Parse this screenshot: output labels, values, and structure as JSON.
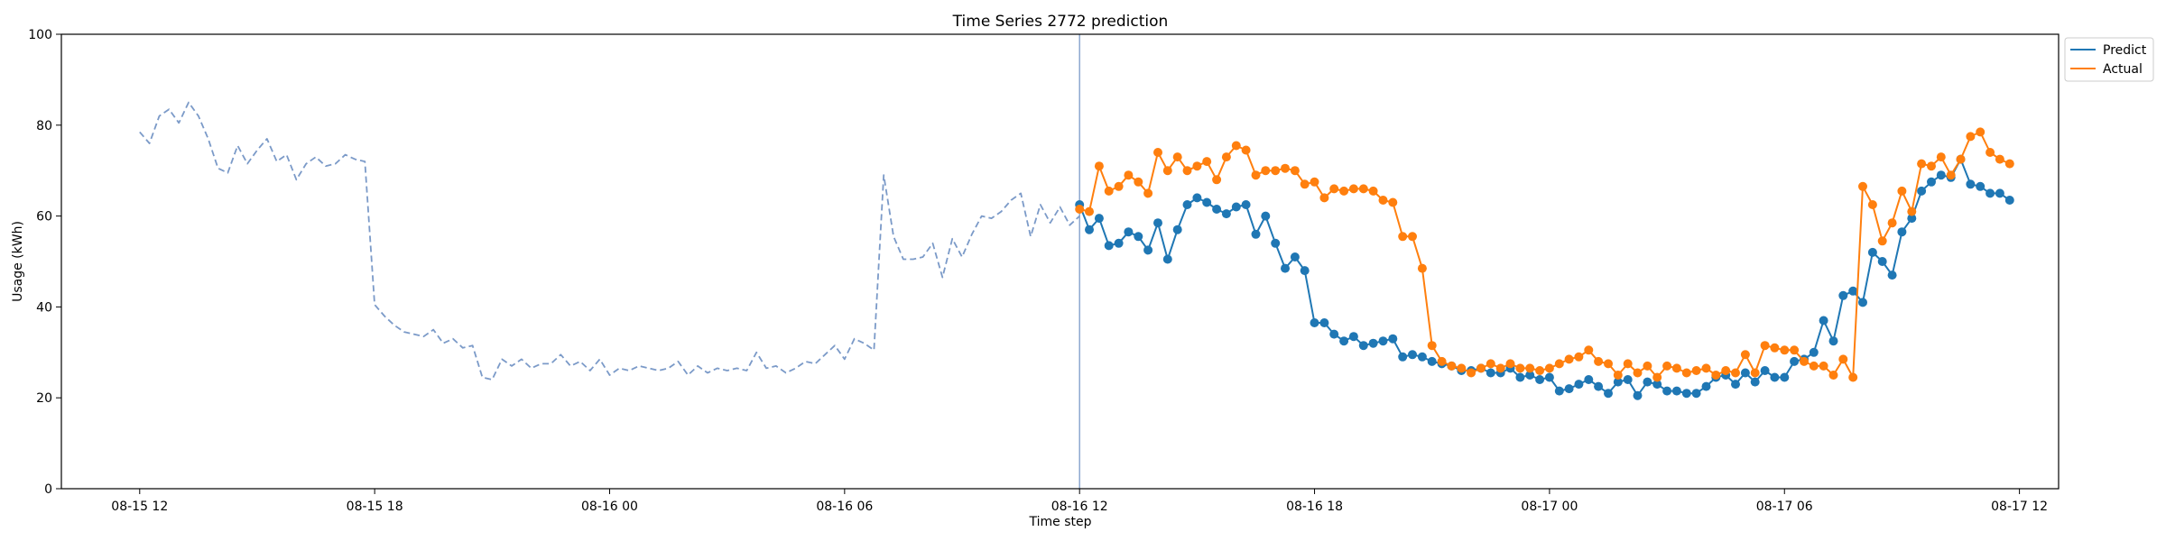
{
  "chart_data": {
    "type": "line",
    "title": "Time Series 2772 prediction",
    "xlabel": "Time step",
    "ylabel": "Usage (kWh)",
    "ylim": [
      0,
      100
    ],
    "yticks": [
      0,
      20,
      40,
      60,
      80,
      100
    ],
    "x_range": [
      "2021-08-15 10:00",
      "2021-08-17 13:00"
    ],
    "x_ticks": [
      {
        "t": "2021-08-15 12:00",
        "label": "08-15 12"
      },
      {
        "t": "2021-08-15 18:00",
        "label": "08-15 18"
      },
      {
        "t": "2021-08-16 00:00",
        "label": "08-16 00"
      },
      {
        "t": "2021-08-16 06:00",
        "label": "08-16 06"
      },
      {
        "t": "2021-08-16 12:00",
        "label": "08-16 12"
      },
      {
        "t": "2021-08-16 18:00",
        "label": "08-16 18"
      },
      {
        "t": "2021-08-17 00:00",
        "label": "08-17 00"
      },
      {
        "t": "2021-08-17 06:00",
        "label": "08-17 06"
      },
      {
        "t": "2021-08-17 12:00",
        "label": "08-17 12"
      }
    ],
    "interval_minutes": 15,
    "forecast_start": "2021-08-16 12:00",
    "legend_position": "upper right, outside axes",
    "grid": false,
    "colors": {
      "predict": "#1f77b4",
      "actual": "#ff7f0e",
      "history": "#7b9ac8",
      "forecast_line": "#7b9ac8"
    },
    "series": [
      {
        "name": "History",
        "start": "2021-08-15 12:00",
        "style": "dashed",
        "values": [
          78.5,
          76.0,
          82.0,
          83.5,
          80.5,
          85.0,
          82.0,
          77.0,
          70.5,
          69.5,
          75.5,
          71.5,
          74.5,
          77.0,
          72.0,
          73.5,
          68.0,
          71.5,
          73.0,
          71.0,
          71.5,
          73.5,
          72.5,
          72.0,
          40.5,
          38.0,
          36.0,
          34.5,
          34.0,
          33.5,
          35.0,
          32.0,
          33.0,
          31.0,
          31.5,
          24.5,
          24.0,
          28.5,
          27.0,
          28.5,
          26.5,
          27.5,
          27.5,
          29.5,
          27.0,
          28.0,
          26.0,
          28.5,
          25.0,
          26.5,
          26.0,
          27.0,
          26.5,
          26.0,
          26.5,
          28.0,
          25.0,
          27.0,
          25.5,
          26.5,
          26.0,
          26.5,
          26.0,
          30.0,
          26.5,
          27.0,
          25.5,
          26.5,
          28.0,
          27.5,
          29.5,
          31.5,
          28.5,
          33.0,
          32.0,
          30.5,
          69.0,
          55.5,
          50.5,
          50.5,
          51.0,
          54.0,
          46.5,
          55.0,
          51.0,
          56.0,
          60.0,
          59.5,
          61.0,
          63.5,
          65.0,
          55.5,
          62.5,
          58.5,
          62.0,
          58.0,
          60.0
        ]
      },
      {
        "name": "Predict",
        "start": "2021-08-16 12:00",
        "values": [
          62.5,
          57.0,
          59.5,
          53.5,
          54.0,
          56.5,
          55.5,
          52.5,
          58.5,
          50.5,
          57.0,
          62.5,
          64.0,
          63.0,
          61.5,
          60.5,
          62.0,
          62.5,
          56.0,
          60.0,
          54.0,
          48.5,
          51.0,
          48.0,
          36.5,
          36.5,
          34.0,
          32.5,
          33.5,
          31.5,
          32.0,
          32.5,
          33.0,
          29.0,
          29.5,
          29.0,
          28.0,
          27.5,
          27.0,
          26.0,
          26.0,
          26.5,
          25.5,
          25.5,
          26.5,
          24.5,
          25.0,
          24.0,
          24.5,
          21.5,
          22.0,
          23.0,
          24.0,
          22.5,
          21.0,
          23.5,
          24.0,
          20.5,
          23.5,
          23.0,
          21.5,
          21.5,
          21.0,
          21.0,
          22.5,
          24.5,
          25.0,
          23.0,
          25.5,
          23.5,
          26.0,
          24.5,
          24.5,
          28.0,
          28.5,
          30.0,
          37.0,
          32.5,
          42.5,
          43.5,
          41.0,
          52.0,
          50.0,
          47.0,
          56.5,
          59.5,
          65.5,
          67.5,
          69.0,
          68.5,
          72.5,
          67.0,
          66.5,
          65.0,
          65.0,
          63.5
        ]
      },
      {
        "name": "Actual",
        "start": "2021-08-16 12:00",
        "values": [
          61.5,
          61.0,
          71.0,
          65.5,
          66.5,
          69.0,
          67.5,
          65.0,
          74.0,
          70.0,
          73.0,
          70.0,
          71.0,
          72.0,
          68.0,
          73.0,
          75.5,
          74.5,
          69.0,
          70.0,
          70.0,
          70.5,
          70.0,
          67.0,
          67.5,
          64.0,
          66.0,
          65.5,
          66.0,
          66.0,
          65.5,
          63.5,
          63.0,
          55.5,
          55.5,
          48.5,
          31.5,
          28.0,
          27.0,
          26.5,
          25.5,
          26.5,
          27.5,
          26.5,
          27.5,
          26.5,
          26.5,
          26.0,
          26.5,
          27.5,
          28.5,
          29.0,
          30.5,
          28.0,
          27.5,
          25.0,
          27.5,
          25.5,
          27.0,
          24.5,
          27.0,
          26.5,
          25.5,
          26.0,
          26.5,
          25.0,
          26.0,
          25.5,
          29.5,
          25.5,
          31.5,
          31.0,
          30.5,
          30.5,
          28.0,
          27.0,
          27.0,
          25.0,
          28.5,
          24.5,
          66.5,
          62.5,
          54.5,
          58.5,
          65.5,
          61.0,
          71.5,
          71.0,
          73.0,
          69.0,
          72.5,
          77.5,
          78.5,
          74.0,
          72.5,
          71.5
        ]
      }
    ]
  }
}
